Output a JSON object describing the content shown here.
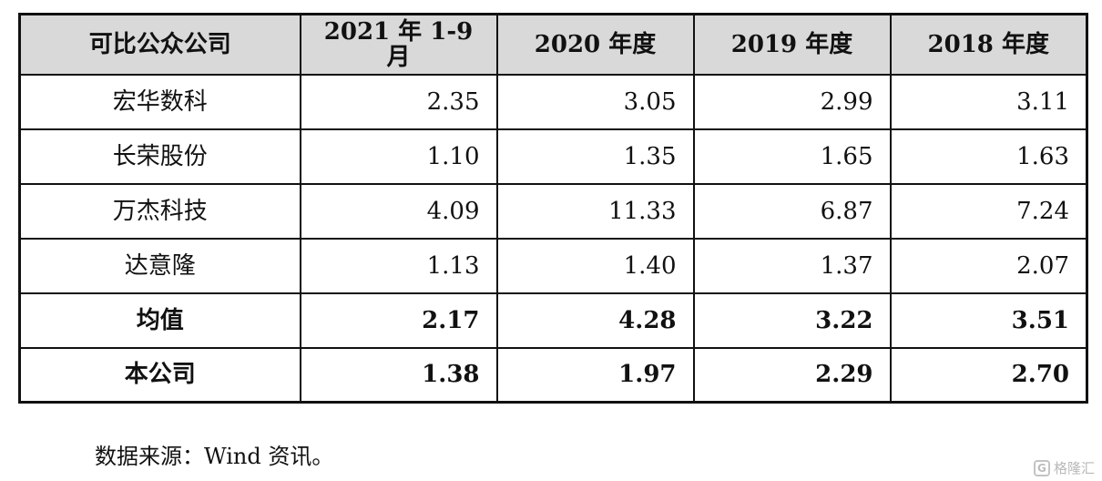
{
  "table": {
    "headers": [
      "可比公众公司",
      "2021 年 1-9 月",
      "2020 年度",
      "2019 年度",
      "2018 年度"
    ],
    "rows": [
      {
        "name": "宏华数科",
        "values": [
          "2.35",
          "3.05",
          "2.99",
          "3.11"
        ],
        "bold": false
      },
      {
        "name": "长荣股份",
        "values": [
          "1.10",
          "1.35",
          "1.65",
          "1.63"
        ],
        "bold": false
      },
      {
        "name": "万杰科技",
        "values": [
          "4.09",
          "11.33",
          "6.87",
          "7.24"
        ],
        "bold": false
      },
      {
        "name": "达意隆",
        "values": [
          "1.13",
          "1.40",
          "1.37",
          "2.07"
        ],
        "bold": false
      },
      {
        "name": "均值",
        "values": [
          "2.17",
          "4.28",
          "3.22",
          "3.51"
        ],
        "bold": true
      },
      {
        "name": "本公司",
        "values": [
          "1.38",
          "1.97",
          "2.29",
          "2.70"
        ],
        "bold": true
      }
    ]
  },
  "source_note": "数据来源：Wind 资讯。",
  "watermark": {
    "icon": "g-logo-icon",
    "glyph": "G",
    "text": "格隆汇"
  }
}
